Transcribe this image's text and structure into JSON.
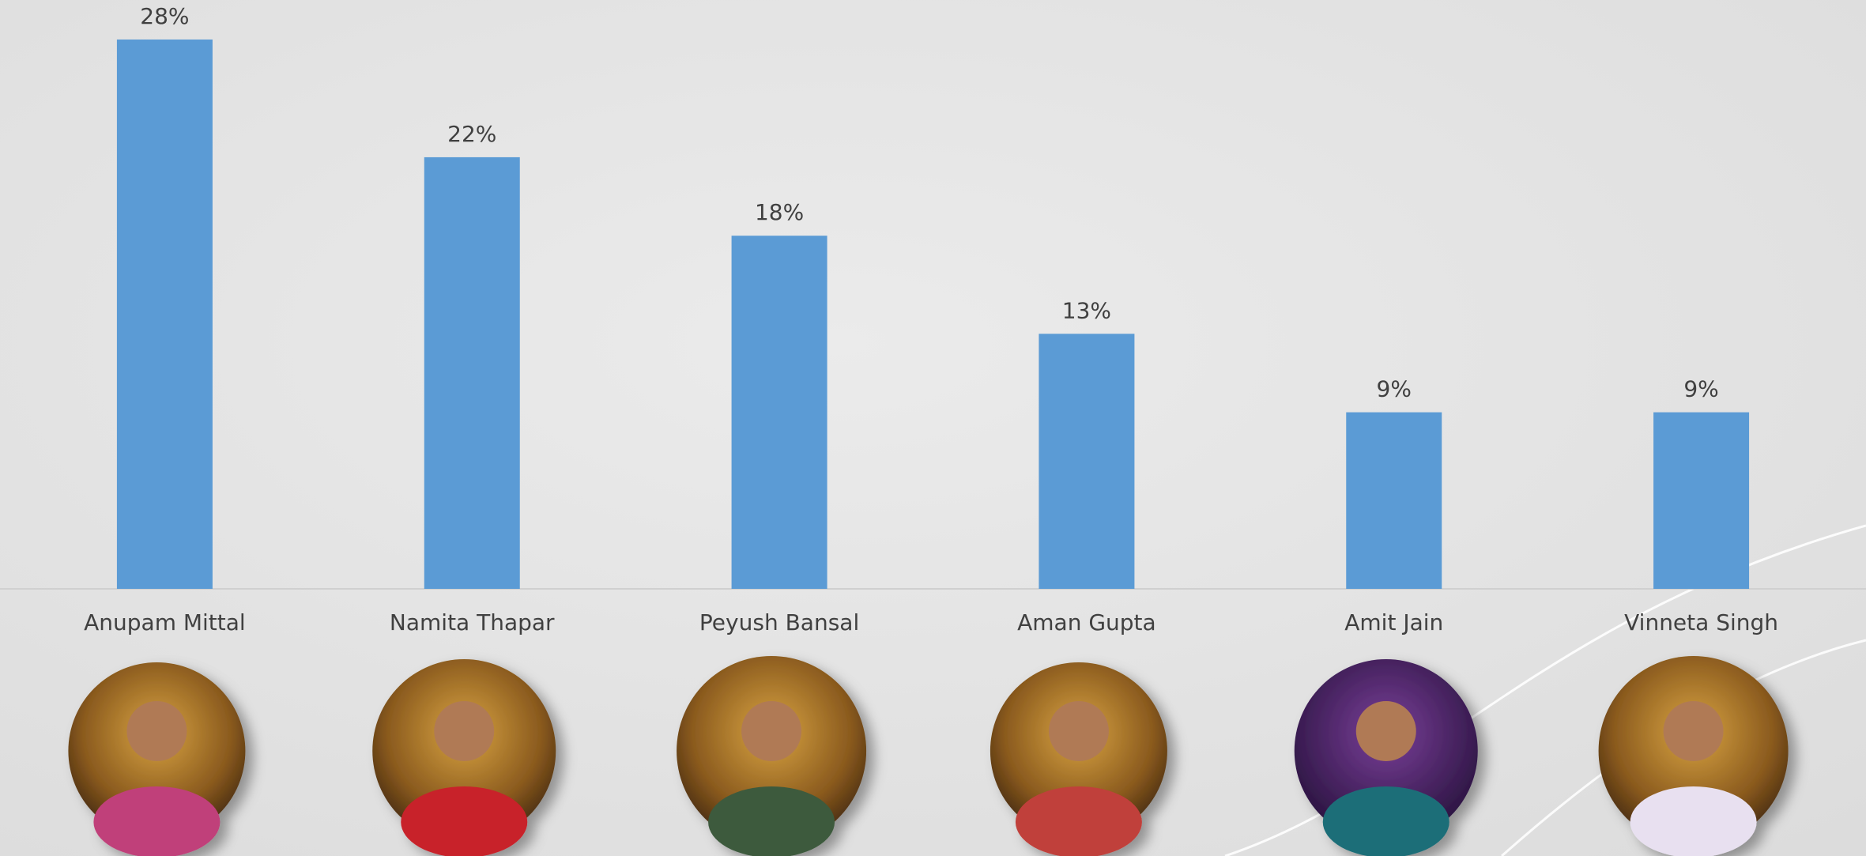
{
  "chart_data": {
    "type": "bar",
    "categories": [
      "Anupam Mittal",
      "Namita Thapar",
      "Peyush Bansal",
      "Aman Gupta",
      "Amit Jain",
      "Vinneta Singh"
    ],
    "values": [
      28,
      22,
      18,
      13,
      9,
      9
    ],
    "value_labels": [
      "28%",
      "22%",
      "18%",
      "13%",
      "9%",
      "9%"
    ],
    "color": "#5b9bd5"
  }
}
